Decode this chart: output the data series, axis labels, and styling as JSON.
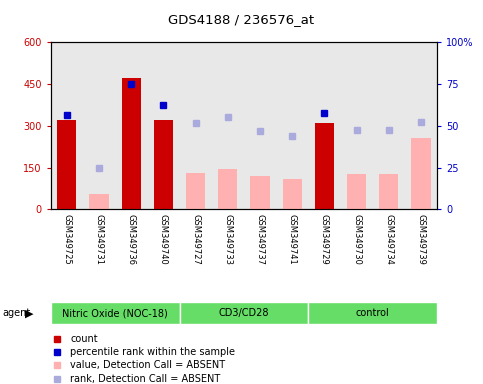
{
  "title": "GDS4188 / 236576_at",
  "samples": [
    "GSM349725",
    "GSM349731",
    "GSM349736",
    "GSM349740",
    "GSM349727",
    "GSM349733",
    "GSM349737",
    "GSM349741",
    "GSM349729",
    "GSM349730",
    "GSM349734",
    "GSM349739"
  ],
  "groups": [
    {
      "label": "Nitric Oxide (NOC-18)",
      "start": 0,
      "end": 4
    },
    {
      "label": "CD3/CD28",
      "start": 4,
      "end": 8
    },
    {
      "label": "control",
      "start": 8,
      "end": 12
    }
  ],
  "count_values": [
    320,
    null,
    470,
    320,
    null,
    null,
    null,
    null,
    310,
    null,
    null,
    null
  ],
  "count_absent": [
    null,
    55,
    null,
    null,
    130,
    145,
    120,
    110,
    null,
    125,
    125,
    255
  ],
  "percentile_rank_left": [
    340,
    null,
    450,
    375,
    null,
    null,
    null,
    null,
    345,
    null,
    null,
    null
  ],
  "rank_absent_left": [
    null,
    150,
    null,
    null,
    310,
    330,
    280,
    265,
    null,
    285,
    285,
    315
  ],
  "ylim_left": [
    0,
    600
  ],
  "ylim_right": [
    0,
    100
  ],
  "yticks_left": [
    0,
    150,
    300,
    450,
    600
  ],
  "yticks_right": [
    0,
    25,
    50,
    75,
    100
  ],
  "ytick_labels_left": [
    "0",
    "150",
    "300",
    "450",
    "600"
  ],
  "ytick_labels_right": [
    "0",
    "25",
    "50",
    "75",
    "100%"
  ],
  "hlines": [
    150,
    300,
    450
  ],
  "bar_width": 0.6,
  "count_color": "#cc0000",
  "count_absent_color": "#ffb0b0",
  "percentile_color": "#0000cc",
  "rank_absent_color": "#aaaadd",
  "background_plot": "#e8e8e8",
  "background_label": "#cccccc",
  "green_color": "#66dd66",
  "white_line": "#ffffff"
}
